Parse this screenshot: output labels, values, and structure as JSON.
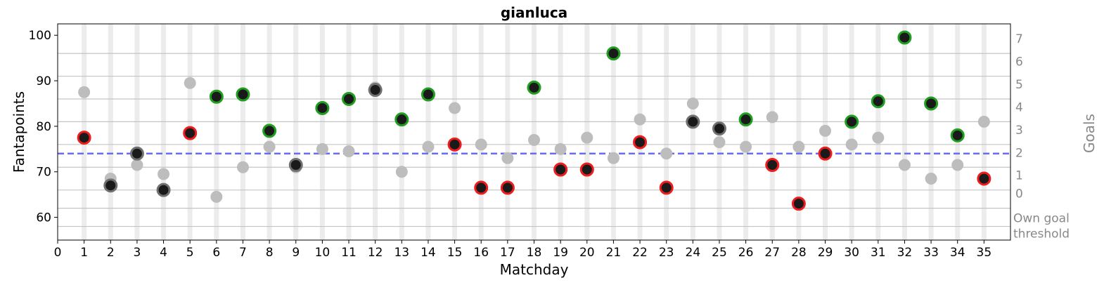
{
  "chart_data": {
    "type": "scatter",
    "title": "gianluca",
    "xlabel": "Matchday",
    "ylabel": "Fantapoints",
    "y2label": "Goals",
    "xlim": [
      0,
      36
    ],
    "ylim": [
      55,
      102.5
    ],
    "x_ticks": [
      "0",
      "1",
      "2",
      "3",
      "4",
      "5",
      "6",
      "7",
      "8",
      "9",
      "10",
      "11",
      "12",
      "13",
      "14",
      "15",
      "16",
      "17",
      "18",
      "19",
      "20",
      "21",
      "22",
      "23",
      "24",
      "25",
      "26",
      "27",
      "28",
      "29",
      "30",
      "31",
      "32",
      "33",
      "34",
      "35"
    ],
    "y_ticks": [
      60,
      70,
      80,
      90,
      100
    ],
    "goal_ticks": [
      "Own goal threshold",
      "0",
      "1",
      "2",
      "3",
      "4",
      "5",
      "6",
      "7"
    ],
    "goal_tick_labels": [
      {
        "label": "Own goal",
        "label2": "threshold",
        "value": 58
      },
      {
        "label": "0",
        "value": 62
      },
      {
        "label": "1",
        "value": 66
      },
      {
        "label": "2",
        "value": 71
      },
      {
        "label": "3",
        "value": 76
      },
      {
        "label": "4",
        "value": 81
      },
      {
        "label": "5",
        "value": 86
      },
      {
        "label": "6",
        "value": 91
      },
      {
        "label": "7",
        "value": 96
      }
    ],
    "reference_line": {
      "value": 74,
      "style": "dashed",
      "color": "#6b6bf0"
    },
    "series": [
      {
        "name": "",
        "role": "player",
        "points": [
          {
            "x": 1,
            "y": 77.5,
            "outcome": "red"
          },
          {
            "x": 2,
            "y": 67,
            "outcome": "gray"
          },
          {
            "x": 3,
            "y": 74,
            "outcome": "gray"
          },
          {
            "x": 4,
            "y": 66,
            "outcome": "gray"
          },
          {
            "x": 5,
            "y": 78.5,
            "outcome": "red"
          },
          {
            "x": 6,
            "y": 86.5,
            "outcome": "green"
          },
          {
            "x": 7,
            "y": 87,
            "outcome": "green"
          },
          {
            "x": 8,
            "y": 79,
            "outcome": "green"
          },
          {
            "x": 9,
            "y": 71.5,
            "outcome": "gray"
          },
          {
            "x": 10,
            "y": 84,
            "outcome": "green"
          },
          {
            "x": 11,
            "y": 86,
            "outcome": "green"
          },
          {
            "x": 12,
            "y": 88,
            "outcome": "gray"
          },
          {
            "x": 13,
            "y": 81.5,
            "outcome": "green"
          },
          {
            "x": 14,
            "y": 87,
            "outcome": "green"
          },
          {
            "x": 15,
            "y": 76,
            "outcome": "red"
          },
          {
            "x": 16,
            "y": 66.5,
            "outcome": "red"
          },
          {
            "x": 17,
            "y": 66.5,
            "outcome": "red"
          },
          {
            "x": 18,
            "y": 88.5,
            "outcome": "green"
          },
          {
            "x": 19,
            "y": 70.5,
            "outcome": "red"
          },
          {
            "x": 20,
            "y": 70.5,
            "outcome": "red"
          },
          {
            "x": 21,
            "y": 96,
            "outcome": "green"
          },
          {
            "x": 22,
            "y": 76.5,
            "outcome": "red"
          },
          {
            "x": 23,
            "y": 66.5,
            "outcome": "red"
          },
          {
            "x": 24,
            "y": 81,
            "outcome": "gray"
          },
          {
            "x": 25,
            "y": 79.5,
            "outcome": "gray"
          },
          {
            "x": 26,
            "y": 81.5,
            "outcome": "green"
          },
          {
            "x": 27,
            "y": 71.5,
            "outcome": "red"
          },
          {
            "x": 28,
            "y": 63,
            "outcome": "red"
          },
          {
            "x": 29,
            "y": 74,
            "outcome": "red"
          },
          {
            "x": 30,
            "y": 81,
            "outcome": "green"
          },
          {
            "x": 31,
            "y": 85.5,
            "outcome": "green"
          },
          {
            "x": 32,
            "y": 99.5,
            "outcome": "green"
          },
          {
            "x": 33,
            "y": 85,
            "outcome": "green"
          },
          {
            "x": 34,
            "y": 78,
            "outcome": "green"
          },
          {
            "x": 35,
            "y": 68.5,
            "outcome": "red"
          }
        ]
      },
      {
        "name": "",
        "role": "opponent",
        "points": [
          {
            "x": 1,
            "y": 87.5
          },
          {
            "x": 2,
            "y": 68.5
          },
          {
            "x": 3,
            "y": 71.5
          },
          {
            "x": 4,
            "y": 69.5
          },
          {
            "x": 5,
            "y": 89.5
          },
          {
            "x": 6,
            "y": 64.5
          },
          {
            "x": 7,
            "y": 71
          },
          {
            "x": 8,
            "y": 75.5
          },
          {
            "x": 9,
            "y": 71
          },
          {
            "x": 10,
            "y": 75
          },
          {
            "x": 11,
            "y": 74.5
          },
          {
            "x": 12,
            "y": 88.5
          },
          {
            "x": 13,
            "y": 70
          },
          {
            "x": 14,
            "y": 75.5
          },
          {
            "x": 15,
            "y": 84
          },
          {
            "x": 16,
            "y": 76
          },
          {
            "x": 17,
            "y": 73
          },
          {
            "x": 18,
            "y": 77
          },
          {
            "x": 19,
            "y": 75
          },
          {
            "x": 20,
            "y": 77.5
          },
          {
            "x": 21,
            "y": 73
          },
          {
            "x": 22,
            "y": 81.5
          },
          {
            "x": 23,
            "y": 74
          },
          {
            "x": 24,
            "y": 85
          },
          {
            "x": 25,
            "y": 76.5
          },
          {
            "x": 26,
            "y": 75.5
          },
          {
            "x": 27,
            "y": 82
          },
          {
            "x": 28,
            "y": 75.5
          },
          {
            "x": 29,
            "y": 79
          },
          {
            "x": 30,
            "y": 76
          },
          {
            "x": 31,
            "y": 77.5
          },
          {
            "x": 32,
            "y": 71.5
          },
          {
            "x": 33,
            "y": 68.5
          },
          {
            "x": 34,
            "y": 71.5
          },
          {
            "x": 35,
            "y": 81
          }
        ]
      }
    ],
    "grid": {
      "vertical_bands": true,
      "goal_lines": true
    },
    "legend": "none",
    "colors": {
      "win": "#1f9e1f",
      "loss": "#ee1c1c",
      "draw": "#707070",
      "marker_fill": "#1a1a1a",
      "opponent": "#bdbdbd",
      "reference": "#6b6bf0",
      "band": "#ececec",
      "goal_line": "#c4c4c4",
      "right_axis_text": "#888888"
    }
  }
}
